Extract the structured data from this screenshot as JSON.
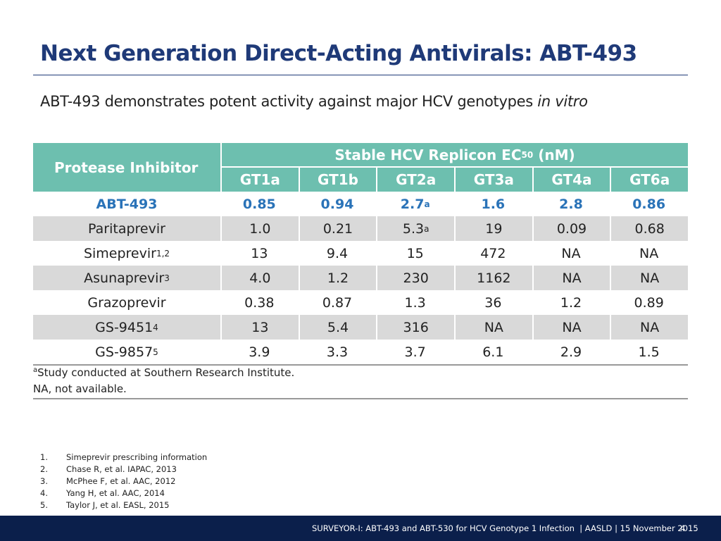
{
  "header": {
    "title": "Next Generation Direct-Acting Antivirals: ABT-493"
  },
  "subtitle": {
    "text": "ABT-493 demonstrates potent activity against major HCV genotypes",
    "emphasis": "in vitro"
  },
  "table": {
    "row_header": "Protease Inhibitor",
    "group_header": {
      "text": "Stable HCV Replicon EC",
      "subscript": "50",
      "suffix": "(nM)"
    },
    "columns": [
      "GT1a",
      "GT1b",
      "GT2a",
      "GT3a",
      "GT4a",
      "GT6a"
    ],
    "rows": [
      {
        "name": "ABT-493",
        "cells": [
          "0.85",
          "0.94",
          {
            "text": "2.7",
            "sup": "a"
          },
          "1.6",
          "2.8",
          "0.86"
        ]
      },
      {
        "name": "Paritaprevir",
        "cells": [
          "1.0",
          "0.21",
          {
            "text": "5.3",
            "sup": "a"
          },
          "19",
          "0.09",
          "0.68"
        ]
      },
      {
        "name": "Simeprevir",
        "name_sup": "1,2",
        "cells": [
          "13",
          "9.4",
          "15",
          "472",
          "NA",
          "NA"
        ]
      },
      {
        "name": "Asunaprevir",
        "name_sup": "3",
        "cells": [
          "4.0",
          "1.2",
          "230",
          "1162",
          "NA",
          "NA"
        ]
      },
      {
        "name": "Grazoprevir",
        "cells": [
          "0.38",
          "0.87",
          "1.3",
          "36",
          "1.2",
          "0.89"
        ]
      },
      {
        "name": "GS-9451",
        "name_sup": "4",
        "cells": [
          "13",
          "5.4",
          "316",
          "NA",
          "NA",
          "NA"
        ]
      },
      {
        "name": "GS-9857",
        "name_sup": "5",
        "cells": [
          "3.9",
          "3.3",
          "3.7",
          "6.1",
          "2.9",
          "1.5"
        ]
      }
    ],
    "footnotes": [
      {
        "sup": "a",
        "text": "Study conducted at Southern Research Institute."
      },
      {
        "text": "NA, not available."
      }
    ]
  },
  "references": [
    {
      "number": "1.",
      "text": "Simeprevir prescribing information"
    },
    {
      "number": "2.",
      "text": "Chase R, et al. IAPAC, 2013"
    },
    {
      "number": "3.",
      "text": "McPhee F, et al. AAC, 2012"
    },
    {
      "number": "4.",
      "text": "Yang H, et al. AAC, 2014"
    },
    {
      "number": "5.",
      "text": "Taylor J, et al. EASL, 2015"
    }
  ],
  "footer": {
    "text": "SURVEYOR-I: ABT-493 and ABT-530 for HCV Genotype 1 Infection  | AASLD | 15 November 2015",
    "page": "4"
  }
}
